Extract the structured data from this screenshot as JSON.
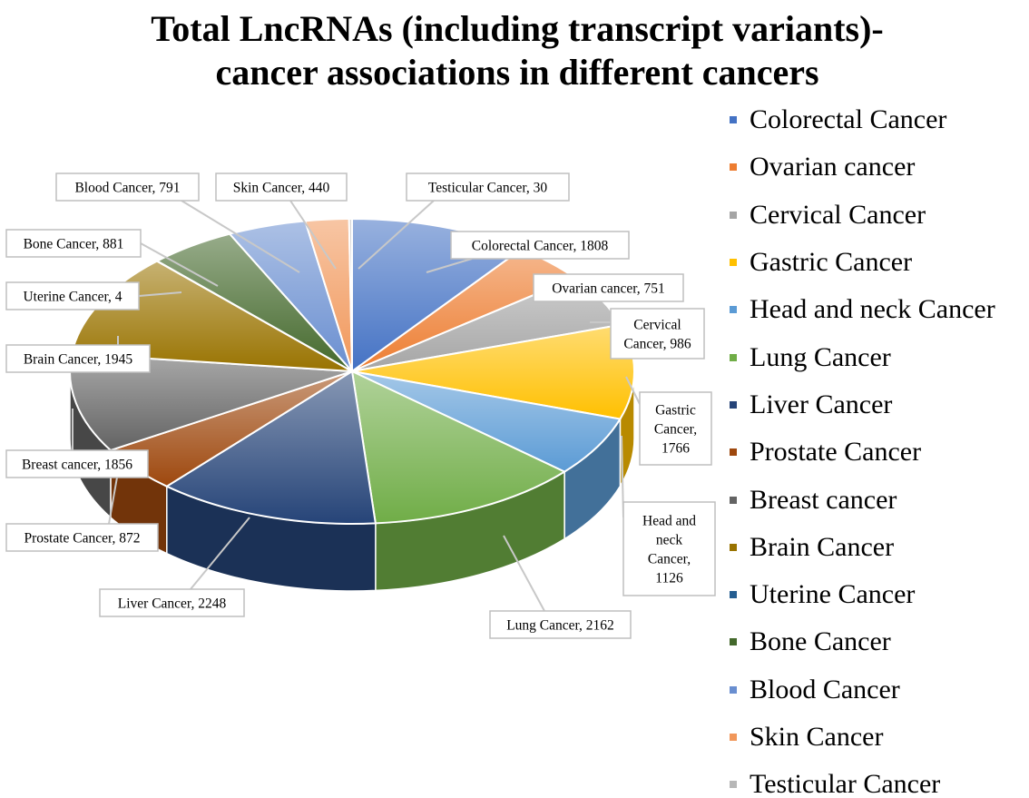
{
  "chart_data": {
    "type": "pie",
    "title_lines": [
      "Total LncRNAs (including transcript variants)-",
      "cancer associations in different cancers"
    ],
    "slices": [
      {
        "name": "Colorectal Cancer",
        "value": 1808,
        "label_lines": [
          "Colorectal Cancer, 1808"
        ],
        "color": "#4472C4"
      },
      {
        "name": "Ovarian cancer",
        "value": 751,
        "label_lines": [
          "Ovarian cancer, 751"
        ],
        "color": "#ED7D31"
      },
      {
        "name": "Cervical Cancer",
        "value": 986,
        "label_lines": [
          "Cervical",
          "Cancer, 986"
        ],
        "color": "#A5A5A5"
      },
      {
        "name": "Gastric Cancer",
        "value": 1766,
        "label_lines": [
          "Gastric",
          "Cancer,",
          "1766"
        ],
        "color": "#FFC000"
      },
      {
        "name": "Head and neck Cancer",
        "value": 1126,
        "label_lines": [
          "Head and",
          "neck",
          "Cancer,",
          "1126"
        ],
        "color": "#5B9BD5"
      },
      {
        "name": "Lung Cancer",
        "value": 2162,
        "label_lines": [
          "Lung Cancer, 2162"
        ],
        "color": "#70AD47"
      },
      {
        "name": "Liver Cancer",
        "value": 2248,
        "label_lines": [
          "Liver Cancer, 2248"
        ],
        "color": "#264478"
      },
      {
        "name": "Prostate Cancer",
        "value": 872,
        "label_lines": [
          "Prostate Cancer, 872"
        ],
        "color": "#9E480E"
      },
      {
        "name": "Breast cancer",
        "value": 1856,
        "label_lines": [
          "Breast cancer, 1856"
        ],
        "color": "#636363"
      },
      {
        "name": "Brain Cancer",
        "value": 1945,
        "label_lines": [
          "Brain Cancer, 1945"
        ],
        "color": "#997300"
      },
      {
        "name": "Uterine Cancer",
        "value": 4,
        "label_lines": [
          "Uterine Cancer, 4"
        ],
        "color": "#255E91"
      },
      {
        "name": "Bone Cancer",
        "value": 881,
        "label_lines": [
          "Bone Cancer, 881"
        ],
        "color": "#43682B"
      },
      {
        "name": "Blood Cancer",
        "value": 791,
        "label_lines": [
          "Blood Cancer, 791"
        ],
        "color": "#698ED0"
      },
      {
        "name": "Skin Cancer",
        "value": 440,
        "label_lines": [
          "Skin Cancer, 440"
        ],
        "color": "#F1975A"
      },
      {
        "name": "Testicular Cancer",
        "value": 30,
        "label_lines": [
          "Testicular Cancer, 30"
        ],
        "color": "#B7B7B7"
      }
    ],
    "legend": [
      {
        "label": "Colorectal Cancer",
        "color": "#4472C4"
      },
      {
        "label": "Ovarian cancer",
        "color": "#ED7D31"
      },
      {
        "label": "Cervical Cancer",
        "color": "#A5A5A5"
      },
      {
        "label": "Gastric Cancer",
        "color": "#FFC000"
      },
      {
        "label": "Head and neck Cancer",
        "color": "#5B9BD5"
      },
      {
        "label": "Lung Cancer",
        "color": "#70AD47"
      },
      {
        "label": "Liver Cancer",
        "color": "#264478"
      },
      {
        "label": "Prostate Cancer",
        "color": "#9E480E"
      },
      {
        "label": "Breast cancer",
        "color": "#636363"
      },
      {
        "label": "Brain Cancer",
        "color": "#997300"
      },
      {
        "label": "Uterine Cancer",
        "color": "#255E91"
      },
      {
        "label": "Bone Cancer",
        "color": "#43682B"
      },
      {
        "label": "Blood Cancer",
        "color": "#698ED0"
      },
      {
        "label": "Skin Cancer",
        "color": "#F1975A"
      },
      {
        "label": "Testicular Cancer",
        "color": "#B7B7B7"
      }
    ],
    "legend_placement": "right",
    "style": "3d-pie",
    "data_labels": "outside with leader lines"
  }
}
